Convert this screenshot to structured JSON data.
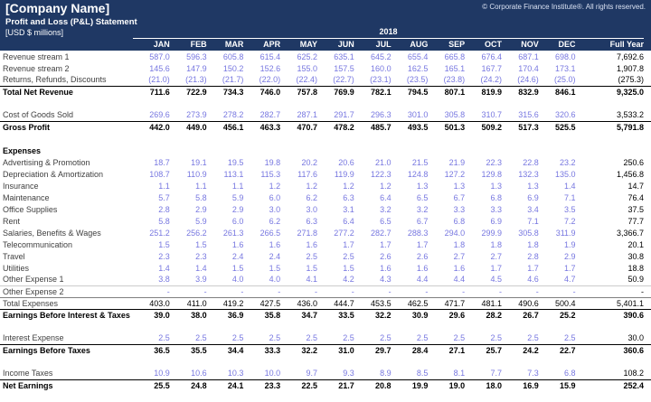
{
  "header": {
    "company_name": "[Company Name]",
    "statement_title": "Profit and Loss (P&L) Statement",
    "units": "[USD $ millions]",
    "copyright": "© Corporate Finance Institute®. All rights reserved.",
    "year": "2018"
  },
  "colors": {
    "banner_navy": "#1F3864",
    "input_value": "#7777E0",
    "computed_value": "#000000",
    "label_text": "#3f3f3f"
  },
  "table": {
    "columns": [
      "JAN",
      "FEB",
      "MAR",
      "APR",
      "MAY",
      "JUN",
      "JUL",
      "AUG",
      "SEP",
      "OCT",
      "NOV",
      "DEC",
      "Full Year"
    ],
    "rows": [
      {
        "type": "input",
        "label": "Revenue stream 1",
        "values": [
          "587.0",
          "596.3",
          "605.8",
          "615.4",
          "625.2",
          "635.1",
          "645.2",
          "655.4",
          "665.8",
          "676.4",
          "687.1",
          "698.0",
          "7,692.6"
        ]
      },
      {
        "type": "input",
        "label": "Revenue stream 2",
        "values": [
          "145.6",
          "147.9",
          "150.2",
          "152.6",
          "155.0",
          "157.5",
          "160.0",
          "162.5",
          "165.1",
          "167.7",
          "170.4",
          "173.1",
          "1,907.8"
        ]
      },
      {
        "type": "input",
        "label": "Returns, Refunds, Discounts",
        "values": [
          "(21.0)",
          "(21.3)",
          "(21.7)",
          "(22.0)",
          "(22.4)",
          "(22.7)",
          "(23.1)",
          "(23.5)",
          "(23.8)",
          "(24.2)",
          "(24.6)",
          "(25.0)",
          "(275.3)"
        ]
      },
      {
        "type": "total",
        "border": "dark",
        "label": "Total Net Revenue",
        "values": [
          "711.6",
          "722.9",
          "734.3",
          "746.0",
          "757.8",
          "769.9",
          "782.1",
          "794.5",
          "807.1",
          "819.9",
          "832.9",
          "846.1",
          "9,325.0"
        ]
      },
      {
        "type": "spacer"
      },
      {
        "type": "input",
        "label": "Cost of Goods Sold",
        "values": [
          "269.6",
          "273.9",
          "278.2",
          "282.7",
          "287.1",
          "291.7",
          "296.3",
          "301.0",
          "305.8",
          "310.7",
          "315.6",
          "320.6",
          "3,533.2"
        ]
      },
      {
        "type": "total",
        "border": "dark",
        "label": "Gross Profit",
        "values": [
          "442.0",
          "449.0",
          "456.1",
          "463.3",
          "470.7",
          "478.2",
          "485.7",
          "493.5",
          "501.3",
          "509.2",
          "517.3",
          "525.5",
          "5,791.8"
        ]
      },
      {
        "type": "spacer"
      },
      {
        "type": "heading",
        "label": "Expenses"
      },
      {
        "type": "input",
        "label": "Advertising & Promotion",
        "values": [
          "18.7",
          "19.1",
          "19.5",
          "19.8",
          "20.2",
          "20.6",
          "21.0",
          "21.5",
          "21.9",
          "22.3",
          "22.8",
          "23.2",
          "250.6"
        ]
      },
      {
        "type": "input",
        "label": "Depreciation & Amortization",
        "values": [
          "108.7",
          "110.9",
          "113.1",
          "115.3",
          "117.6",
          "119.9",
          "122.3",
          "124.8",
          "127.2",
          "129.8",
          "132.3",
          "135.0",
          "1,456.8"
        ]
      },
      {
        "type": "input",
        "label": "Insurance",
        "values": [
          "1.1",
          "1.1",
          "1.1",
          "1.2",
          "1.2",
          "1.2",
          "1.2",
          "1.3",
          "1.3",
          "1.3",
          "1.3",
          "1.4",
          "14.7"
        ]
      },
      {
        "type": "input",
        "label": "Maintenance",
        "values": [
          "5.7",
          "5.8",
          "5.9",
          "6.0",
          "6.2",
          "6.3",
          "6.4",
          "6.5",
          "6.7",
          "6.8",
          "6.9",
          "7.1",
          "76.4"
        ]
      },
      {
        "type": "input",
        "label": "Office Supplies",
        "values": [
          "2.8",
          "2.9",
          "2.9",
          "3.0",
          "3.0",
          "3.1",
          "3.2",
          "3.2",
          "3.3",
          "3.3",
          "3.4",
          "3.5",
          "37.5"
        ]
      },
      {
        "type": "input",
        "label": "Rent",
        "values": [
          "5.8",
          "5.9",
          "6.0",
          "6.2",
          "6.3",
          "6.4",
          "6.5",
          "6.7",
          "6.8",
          "6.9",
          "7.1",
          "7.2",
          "77.7"
        ]
      },
      {
        "type": "input",
        "label": "Salaries, Benefits & Wages",
        "values": [
          "251.2",
          "256.2",
          "261.3",
          "266.5",
          "271.8",
          "277.2",
          "282.7",
          "288.3",
          "294.0",
          "299.9",
          "305.8",
          "311.9",
          "3,366.7"
        ]
      },
      {
        "type": "input",
        "label": "Telecommunication",
        "values": [
          "1.5",
          "1.5",
          "1.6",
          "1.6",
          "1.6",
          "1.7",
          "1.7",
          "1.7",
          "1.8",
          "1.8",
          "1.8",
          "1.9",
          "20.1"
        ]
      },
      {
        "type": "input",
        "label": "Travel",
        "values": [
          "2.3",
          "2.3",
          "2.4",
          "2.4",
          "2.5",
          "2.5",
          "2.6",
          "2.6",
          "2.7",
          "2.7",
          "2.8",
          "2.9",
          "30.8"
        ]
      },
      {
        "type": "input",
        "label": "Utilities",
        "values": [
          "1.4",
          "1.4",
          "1.5",
          "1.5",
          "1.5",
          "1.5",
          "1.6",
          "1.6",
          "1.6",
          "1.7",
          "1.7",
          "1.7",
          "18.8"
        ]
      },
      {
        "type": "input",
        "label": "Other Expense 1",
        "values": [
          "3.8",
          "3.9",
          "4.0",
          "4.0",
          "4.1",
          "4.2",
          "4.3",
          "4.4",
          "4.4",
          "4.5",
          "4.6",
          "4.7",
          "50.9"
        ]
      },
      {
        "type": "input",
        "border": "light",
        "label": "Other Expense 2",
        "values": [
          "-",
          "-",
          "-",
          "-",
          "-",
          "-",
          "-",
          "-",
          "-",
          "-",
          "-",
          "-",
          "-"
        ]
      },
      {
        "type": "subtotal",
        "border": "mid",
        "label": "Total Expenses",
        "values": [
          "403.0",
          "411.0",
          "419.2",
          "427.5",
          "436.0",
          "444.7",
          "453.5",
          "462.5",
          "471.7",
          "481.1",
          "490.6",
          "500.4",
          "5,401.1"
        ]
      },
      {
        "type": "total",
        "border": "dark",
        "label": "Earnings Before Interest & Taxes",
        "values": [
          "39.0",
          "38.0",
          "36.9",
          "35.8",
          "34.7",
          "33.5",
          "32.2",
          "30.9",
          "29.6",
          "28.2",
          "26.7",
          "25.2",
          "390.6"
        ]
      },
      {
        "type": "spacer"
      },
      {
        "type": "input",
        "label": "Interest Expense",
        "values": [
          "2.5",
          "2.5",
          "2.5",
          "2.5",
          "2.5",
          "2.5",
          "2.5",
          "2.5",
          "2.5",
          "2.5",
          "2.5",
          "2.5",
          "30.0"
        ]
      },
      {
        "type": "total",
        "border": "dark",
        "label": "Earnings Before Taxes",
        "values": [
          "36.5",
          "35.5",
          "34.4",
          "33.3",
          "32.2",
          "31.0",
          "29.7",
          "28.4",
          "27.1",
          "25.7",
          "24.2",
          "22.7",
          "360.6"
        ]
      },
      {
        "type": "spacer"
      },
      {
        "type": "input",
        "label": "Income Taxes",
        "values": [
          "10.9",
          "10.6",
          "10.3",
          "10.0",
          "9.7",
          "9.3",
          "8.9",
          "8.5",
          "8.1",
          "7.7",
          "7.3",
          "6.8",
          "108.2"
        ]
      },
      {
        "type": "total",
        "border": "dark",
        "label": "Net Earnings",
        "values": [
          "25.5",
          "24.8",
          "24.1",
          "23.3",
          "22.5",
          "21.7",
          "20.8",
          "19.9",
          "19.0",
          "18.0",
          "16.9",
          "15.9",
          "252.4"
        ]
      }
    ]
  }
}
